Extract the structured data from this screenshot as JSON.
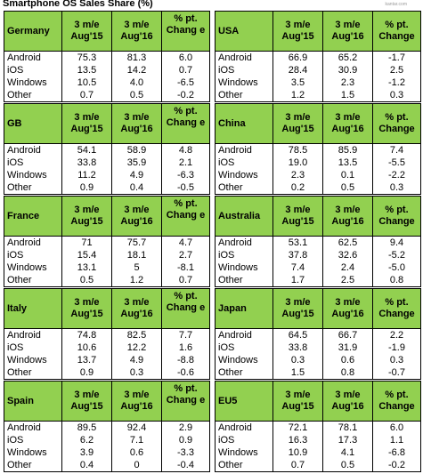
{
  "title": "Smartphone OS Sales Share (%)",
  "watermark": "kantar.com",
  "headers": {
    "col1": "3 m/e Aug'15",
    "col2": "3 m/e Aug'16",
    "col3_full": "% pt. Change",
    "col3_wrapped": "% pt. Chang e"
  },
  "os_labels": [
    "Android",
    "iOS",
    "Windows",
    "Other"
  ],
  "chart_data": {
    "type": "table",
    "columns": [
      "3 m/e Aug'15",
      "3 m/e Aug'16",
      "% pt. Change"
    ],
    "regions": [
      {
        "name": "Germany",
        "rows": [
          [
            "75.3",
            "81.3",
            "6.0"
          ],
          [
            "13.5",
            "14.2",
            "0.7"
          ],
          [
            "10.5",
            "4.0",
            "-6.5"
          ],
          [
            "0.7",
            "0.5",
            "-0.2"
          ]
        ]
      },
      {
        "name": "USA",
        "rows": [
          [
            "66.9",
            "65.2",
            "-1.7"
          ],
          [
            "28.4",
            "30.9",
            "2.5"
          ],
          [
            "3.5",
            "2.3",
            "-1.2"
          ],
          [
            "1.2",
            "1.5",
            "0.3"
          ]
        ]
      },
      {
        "name": "GB",
        "rows": [
          [
            "54.1",
            "58.9",
            "4.8"
          ],
          [
            "33.8",
            "35.9",
            "2.1"
          ],
          [
            "11.2",
            "4.9",
            "-6.3"
          ],
          [
            "0.9",
            "0.4",
            "-0.5"
          ]
        ]
      },
      {
        "name": "China",
        "rows": [
          [
            "78.5",
            "85.9",
            "7.4"
          ],
          [
            "19.0",
            "13.5",
            "-5.5"
          ],
          [
            "2.3",
            "0.1",
            "-2.2"
          ],
          [
            "0.2",
            "0.5",
            "0.3"
          ]
        ]
      },
      {
        "name": "France",
        "rows": [
          [
            "71",
            "75.7",
            "4.7"
          ],
          [
            "15.4",
            "18.1",
            "2.7"
          ],
          [
            "13.1",
            "5",
            "-8.1"
          ],
          [
            "0.5",
            "1.2",
            "0.7"
          ]
        ]
      },
      {
        "name": "Australia",
        "rows": [
          [
            "53.1",
            "62.5",
            "9.4"
          ],
          [
            "37.8",
            "32.6",
            "-5.2"
          ],
          [
            "7.4",
            "2.4",
            "-5.0"
          ],
          [
            "1.7",
            "2.5",
            "0.8"
          ]
        ]
      },
      {
        "name": "Italy",
        "rows": [
          [
            "74.8",
            "82.5",
            "7.7"
          ],
          [
            "10.6",
            "12.2",
            "1.6"
          ],
          [
            "13.7",
            "4.9",
            "-8.8"
          ],
          [
            "0.9",
            "0.3",
            "-0.6"
          ]
        ]
      },
      {
        "name": "Japan",
        "rows": [
          [
            "64.5",
            "66.7",
            "2.2"
          ],
          [
            "33.8",
            "31.9",
            "-1.9"
          ],
          [
            "0.3",
            "0.6",
            "0.3"
          ],
          [
            "1.5",
            "0.8",
            "-0.7"
          ]
        ]
      },
      {
        "name": "Spain",
        "rows": [
          [
            "89.5",
            "92.4",
            "2.9"
          ],
          [
            "6.2",
            "7.1",
            "0.9"
          ],
          [
            "3.9",
            "0.6",
            "-3.3"
          ],
          [
            "0.4",
            "0",
            "-0.4"
          ]
        ]
      },
      {
        "name": "EU5",
        "rows": [
          [
            "72.1",
            "78.1",
            "6.0"
          ],
          [
            "16.3",
            "17.3",
            "1.1"
          ],
          [
            "10.9",
            "4.1",
            "-6.8"
          ],
          [
            "0.7",
            "0.5",
            "-0.2"
          ]
        ]
      }
    ]
  },
  "colors": {
    "header_bg": "#92d050",
    "border": "#000000",
    "text": "#000000"
  }
}
